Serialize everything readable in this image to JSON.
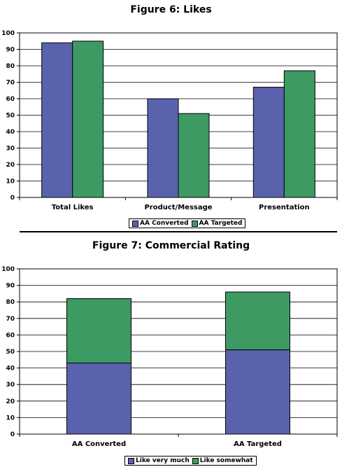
{
  "colors": {
    "series1": "#5b62ad",
    "series2": "#3d9a63",
    "grid": "#000000",
    "plot_bg": "#ffffff"
  },
  "chart_data": [
    {
      "type": "bar",
      "title": "Figure 6: Likes",
      "categories": [
        "Total Likes",
        "Product/Message",
        "Presentation"
      ],
      "series": [
        {
          "name": "AA Converted",
          "values": [
            94,
            60,
            67
          ],
          "color": "#5b62ad"
        },
        {
          "name": "AA Targeted",
          "values": [
            95,
            51,
            77
          ],
          "color": "#3d9a63"
        }
      ],
      "ylim": [
        0,
        100
      ],
      "yticks": [
        "0",
        "10",
        "20",
        "30",
        "40",
        "50",
        "60",
        "70",
        "80",
        "90",
        "100"
      ],
      "grid": true,
      "legend_position": "bottom"
    },
    {
      "type": "bar",
      "stacked": true,
      "title": "Figure 7: Commercial Rating",
      "categories": [
        "AA Converted",
        "AA Targeted"
      ],
      "series": [
        {
          "name": "Like very much",
          "values": [
            43,
            51
          ],
          "color": "#5b62ad"
        },
        {
          "name": "Like somewhat",
          "values": [
            39,
            35
          ],
          "color": "#3d9a63"
        }
      ],
      "ylim": [
        0,
        100
      ],
      "yticks": [
        "0",
        "10",
        "20",
        "30",
        "40",
        "50",
        "60",
        "70",
        "80",
        "90",
        "100"
      ],
      "grid": true,
      "legend_position": "bottom"
    }
  ]
}
